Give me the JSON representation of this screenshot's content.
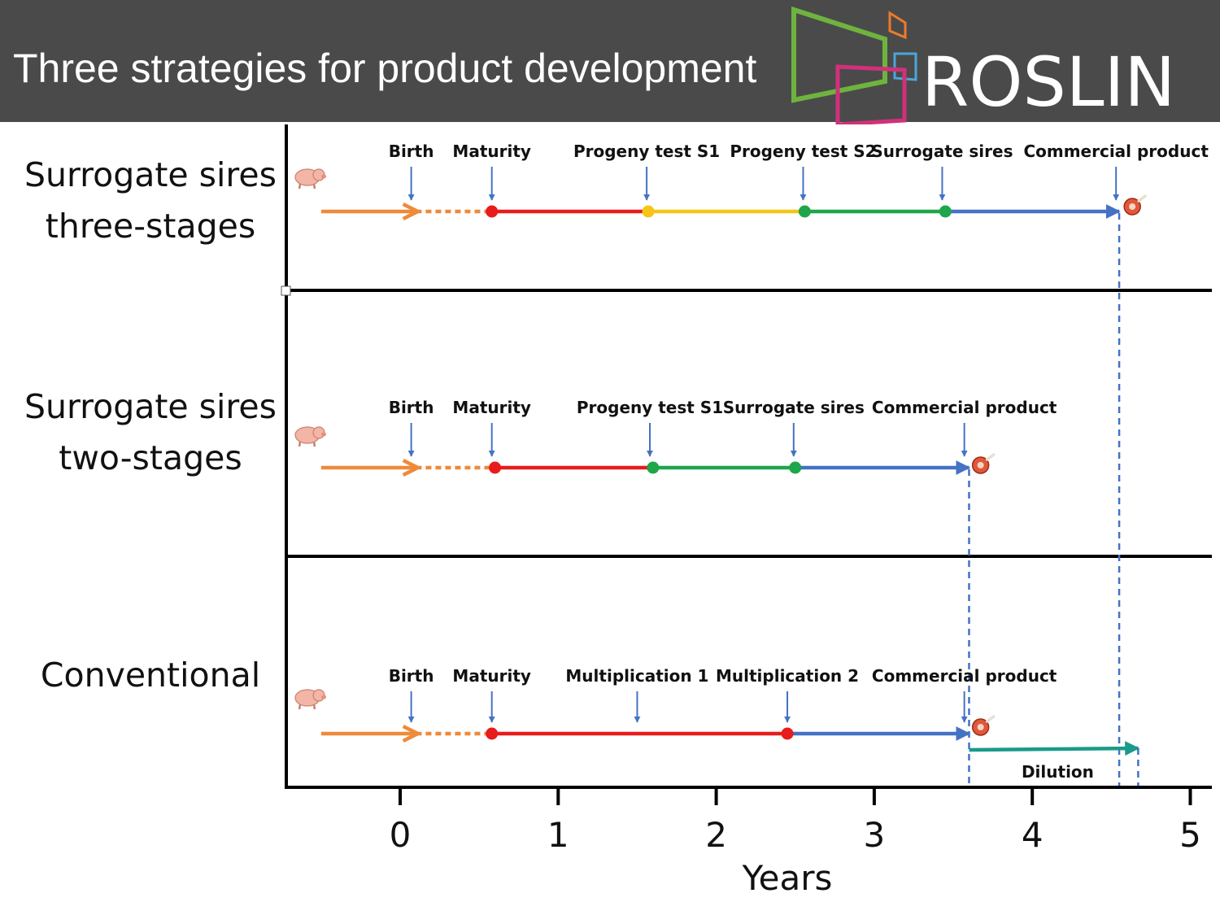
{
  "header": {
    "title": "Three strategies for product development",
    "logo_text": "ROSLIN"
  },
  "colors": {
    "pre_birth": "#ee8a3a",
    "juvenile_dotted": "#ee8a3a",
    "maturity_phase": "#e81c1c",
    "progeny_test_s1_phase": "#f5c518",
    "surrogate_phase": "#1ea64a",
    "to_product_phase": "#4472c4",
    "dilution": "#1a9a8a",
    "event_arrow": "#4472c4",
    "guide_line": "#4472c4",
    "header_bg": "#4a4a4a"
  },
  "chart_data": {
    "type": "timeline",
    "xlabel": "Years",
    "xlim": [
      -0.65,
      5.15
    ],
    "xticks": [
      0,
      1,
      2,
      3,
      4,
      5
    ],
    "xtick_labels": [
      "0",
      "1",
      "2",
      "3",
      "4",
      "5"
    ],
    "rows": [
      {
        "label_lines": [
          "Surrogate sires",
          "three-stages"
        ],
        "start": -0.5,
        "segments": [
          {
            "from": -0.5,
            "to": 0.1,
            "style": "arrow",
            "color_key": "pre_birth"
          },
          {
            "from": 0.1,
            "to": 0.58,
            "style": "dotted",
            "color_key": "juvenile_dotted"
          },
          {
            "from": 0.58,
            "to": 1.57,
            "style": "solid",
            "color_key": "maturity_phase"
          },
          {
            "from": 1.57,
            "to": 2.56,
            "style": "solid",
            "color_key": "progeny_test_s1_phase"
          },
          {
            "from": 2.56,
            "to": 3.45,
            "style": "solid",
            "color_key": "surrogate_phase"
          },
          {
            "from": 3.45,
            "to": 4.55,
            "style": "arrow",
            "color_key": "to_product_phase"
          }
        ],
        "dots": [
          {
            "x": 0.58,
            "color_key": "maturity_phase"
          },
          {
            "x": 1.57,
            "color_key": "progeny_test_s1_phase"
          },
          {
            "x": 2.56,
            "color_key": "surrogate_phase"
          },
          {
            "x": 3.45,
            "color_key": "surrogate_phase"
          }
        ],
        "events": [
          {
            "label": "Birth",
            "x": 0.07
          },
          {
            "label": "Maturity",
            "x": 0.58
          },
          {
            "label": "Progeny test S1",
            "x": 1.56
          },
          {
            "label": "Progeny test S2",
            "x": 2.55
          },
          {
            "label": "Surrogate sires",
            "x": 3.43
          },
          {
            "label": "Commercial product",
            "x": 4.53
          }
        ]
      },
      {
        "label_lines": [
          "Surrogate sires",
          "two-stages"
        ],
        "start": -0.5,
        "segments": [
          {
            "from": -0.5,
            "to": 0.1,
            "style": "arrow",
            "color_key": "pre_birth"
          },
          {
            "from": 0.1,
            "to": 0.6,
            "style": "dotted",
            "color_key": "juvenile_dotted"
          },
          {
            "from": 0.6,
            "to": 1.6,
            "style": "solid",
            "color_key": "maturity_phase"
          },
          {
            "from": 1.6,
            "to": 2.5,
            "style": "solid",
            "color_key": "surrogate_phase"
          },
          {
            "from": 2.5,
            "to": 3.6,
            "style": "arrow",
            "color_key": "to_product_phase"
          }
        ],
        "dots": [
          {
            "x": 0.6,
            "color_key": "maturity_phase"
          },
          {
            "x": 1.6,
            "color_key": "surrogate_phase"
          },
          {
            "x": 2.5,
            "color_key": "surrogate_phase"
          }
        ],
        "events": [
          {
            "label": "Birth",
            "x": 0.07
          },
          {
            "label": "Maturity",
            "x": 0.58
          },
          {
            "label": "Progeny test S1",
            "x": 1.58
          },
          {
            "label": "Surrogate sires",
            "x": 2.49
          },
          {
            "label": "Commercial product",
            "x": 3.57
          }
        ]
      },
      {
        "label_lines": [
          "Conventional"
        ],
        "start": -0.5,
        "segments": [
          {
            "from": -0.5,
            "to": 0.1,
            "style": "arrow",
            "color_key": "pre_birth"
          },
          {
            "from": 0.1,
            "to": 0.58,
            "style": "dotted",
            "color_key": "juvenile_dotted"
          },
          {
            "from": 0.58,
            "to": 2.45,
            "style": "solid",
            "color_key": "maturity_phase"
          },
          {
            "from": 2.45,
            "to": 3.6,
            "style": "arrow",
            "color_key": "to_product_phase"
          }
        ],
        "dots": [
          {
            "x": 0.58,
            "color_key": "maturity_phase"
          },
          {
            "x": 2.45,
            "color_key": "maturity_phase"
          }
        ],
        "events": [
          {
            "label": "Birth",
            "x": 0.07
          },
          {
            "label": "Maturity",
            "x": 0.58
          },
          {
            "label": "Multiplication 1",
            "x": 1.5
          },
          {
            "label": "Multiplication 2",
            "x": 2.45
          },
          {
            "label": "Commercial product",
            "x": 3.57
          }
        ],
        "dilution": {
          "label": "Dilution",
          "from": 3.6,
          "to": 4.67
        }
      }
    ],
    "guides": [
      3.6,
      4.55,
      4.67
    ]
  }
}
